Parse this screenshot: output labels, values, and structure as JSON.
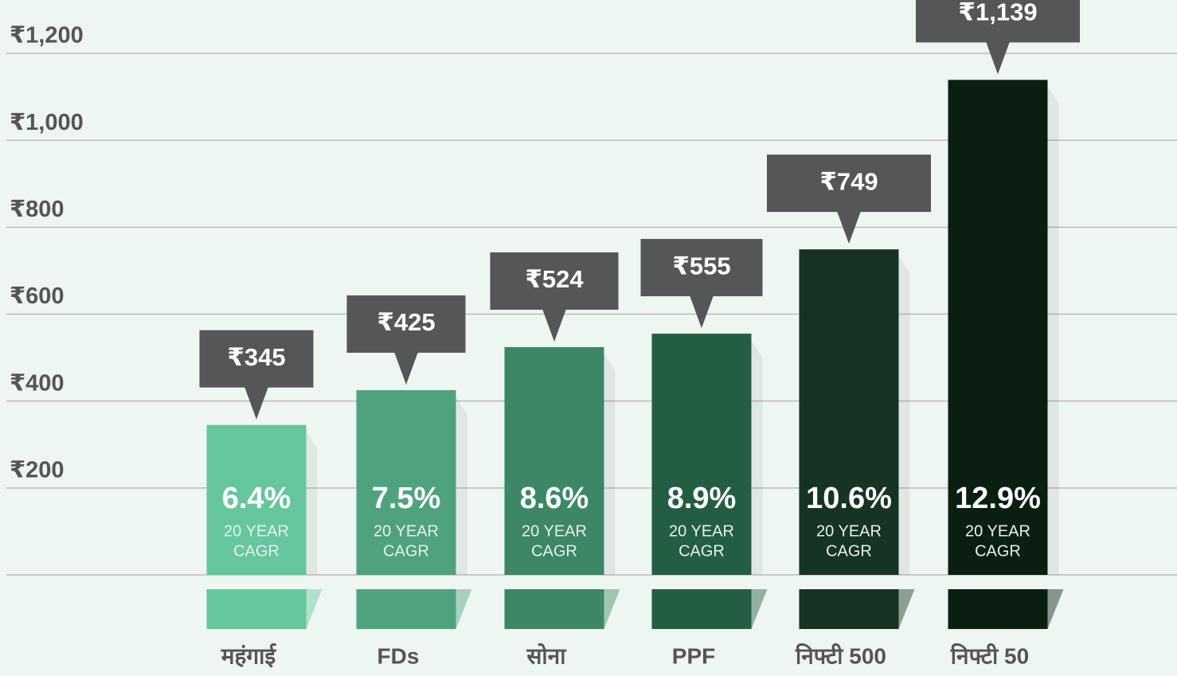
{
  "chart_data": {
    "type": "bar",
    "categories": [
      "महंगाई",
      "FDs",
      "सोना",
      "PPF",
      "निफ्टी 500",
      "निफ्टी 50"
    ],
    "values": [
      345,
      425,
      524,
      555,
      749,
      1139
    ],
    "value_labels": [
      "₹345",
      "₹425",
      "₹524",
      "₹555",
      "₹749",
      "₹1,139"
    ],
    "colors": [
      "#66c69c",
      "#4fa37c",
      "#3d8764",
      "#245e42",
      "#163323",
      "#0b1e12"
    ],
    "cagr": [
      "6.4%",
      "7.5%",
      "8.6%",
      "8.9%",
      "10.6%",
      "12.9%"
    ],
    "cagr_caption": [
      "20 YEAR",
      "CAGR"
    ],
    "ylim": [
      0,
      1200
    ],
    "yticks": [
      {
        "value": 200,
        "label": "₹200"
      },
      {
        "value": 400,
        "label": "₹400"
      },
      {
        "value": 600,
        "label": "₹600"
      },
      {
        "value": 800,
        "label": "₹800"
      },
      {
        "value": 1000,
        "label": "₹1,000"
      },
      {
        "value": 1200,
        "label": "₹1,200"
      }
    ],
    "grid": true
  }
}
